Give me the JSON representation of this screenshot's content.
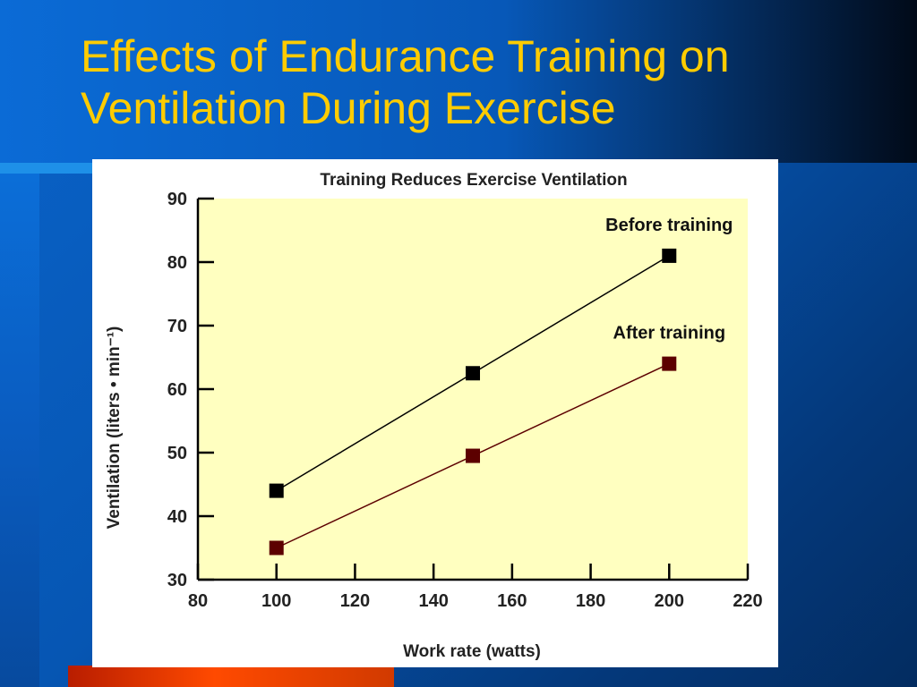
{
  "slide": {
    "title": "Effects of Endurance Training on\nVentilation During Exercise",
    "colors": {
      "title_text": "#ffcc00",
      "background": "#0656b3",
      "plot_area": "#ffffc0",
      "before_series": "#000000",
      "after_series": "#5c0000"
    }
  },
  "chart_data": {
    "type": "line",
    "title": "Training Reduces Exercise Ventilation",
    "xlabel": "Work rate (watts)",
    "ylabel": "Ventilation (liters • min⁻¹)",
    "xlim": [
      80,
      220
    ],
    "ylim": [
      30,
      90
    ],
    "xticks": [
      80,
      100,
      120,
      140,
      160,
      180,
      200,
      220
    ],
    "yticks": [
      30,
      40,
      50,
      60,
      70,
      80,
      90
    ],
    "grid": false,
    "series": [
      {
        "name": "Before training",
        "x": [
          100,
          150,
          200
        ],
        "y": [
          44,
          62.5,
          81
        ],
        "color": "#000000"
      },
      {
        "name": "After training",
        "x": [
          100,
          150,
          200
        ],
        "y": [
          35,
          49.5,
          64
        ],
        "color": "#5c0000"
      }
    ]
  }
}
